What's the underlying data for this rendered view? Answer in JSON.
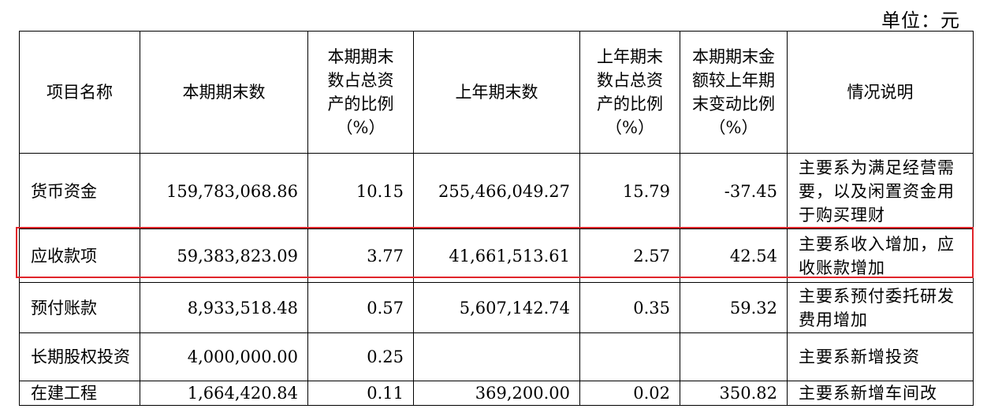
{
  "unit_label": "单位：元",
  "headers": {
    "c0": "项目名称",
    "c1": "本期期末数",
    "c2": "本期期末数占总资产的比例（%）",
    "c3": "上年期末数",
    "c4": "上年期末数占总资产的比例（%）",
    "c5": "本期期末金额较上年期末变动比例（%）",
    "c6": "情况说明"
  },
  "rows": [
    {
      "name": "货币资金",
      "current": "159,783,068.86",
      "current_pct": "10.15",
      "prior": "255,466,049.27",
      "prior_pct": "15.79",
      "change_pct": "-37.45",
      "note": "主要系为满足经营需要，以及闲置资金用于购买理财"
    },
    {
      "name": "应收款项",
      "current": "59,383,823.09",
      "current_pct": "3.77",
      "prior": "41,661,513.61",
      "prior_pct": "2.57",
      "change_pct": "42.54",
      "note": "主要系收入增加，应收账款增加"
    },
    {
      "name": "预付账款",
      "current": "8,933,518.48",
      "current_pct": "0.57",
      "prior": "5,607,142.74",
      "prior_pct": "0.35",
      "change_pct": "59.32",
      "note": "主要系预付委托研发费用增加"
    },
    {
      "name": "长期股权投资",
      "current": "4,000,000.00",
      "current_pct": "0.25",
      "prior": "",
      "prior_pct": "",
      "change_pct": "",
      "note": "主要系新增投资"
    },
    {
      "name": "在建工程",
      "current": "1,664,420.84",
      "current_pct": "0.11",
      "prior": "369,200.00",
      "prior_pct": "0.02",
      "change_pct": "350.82",
      "note": "主要系新增车间改"
    }
  ],
  "highlight_color": "#e0242a"
}
